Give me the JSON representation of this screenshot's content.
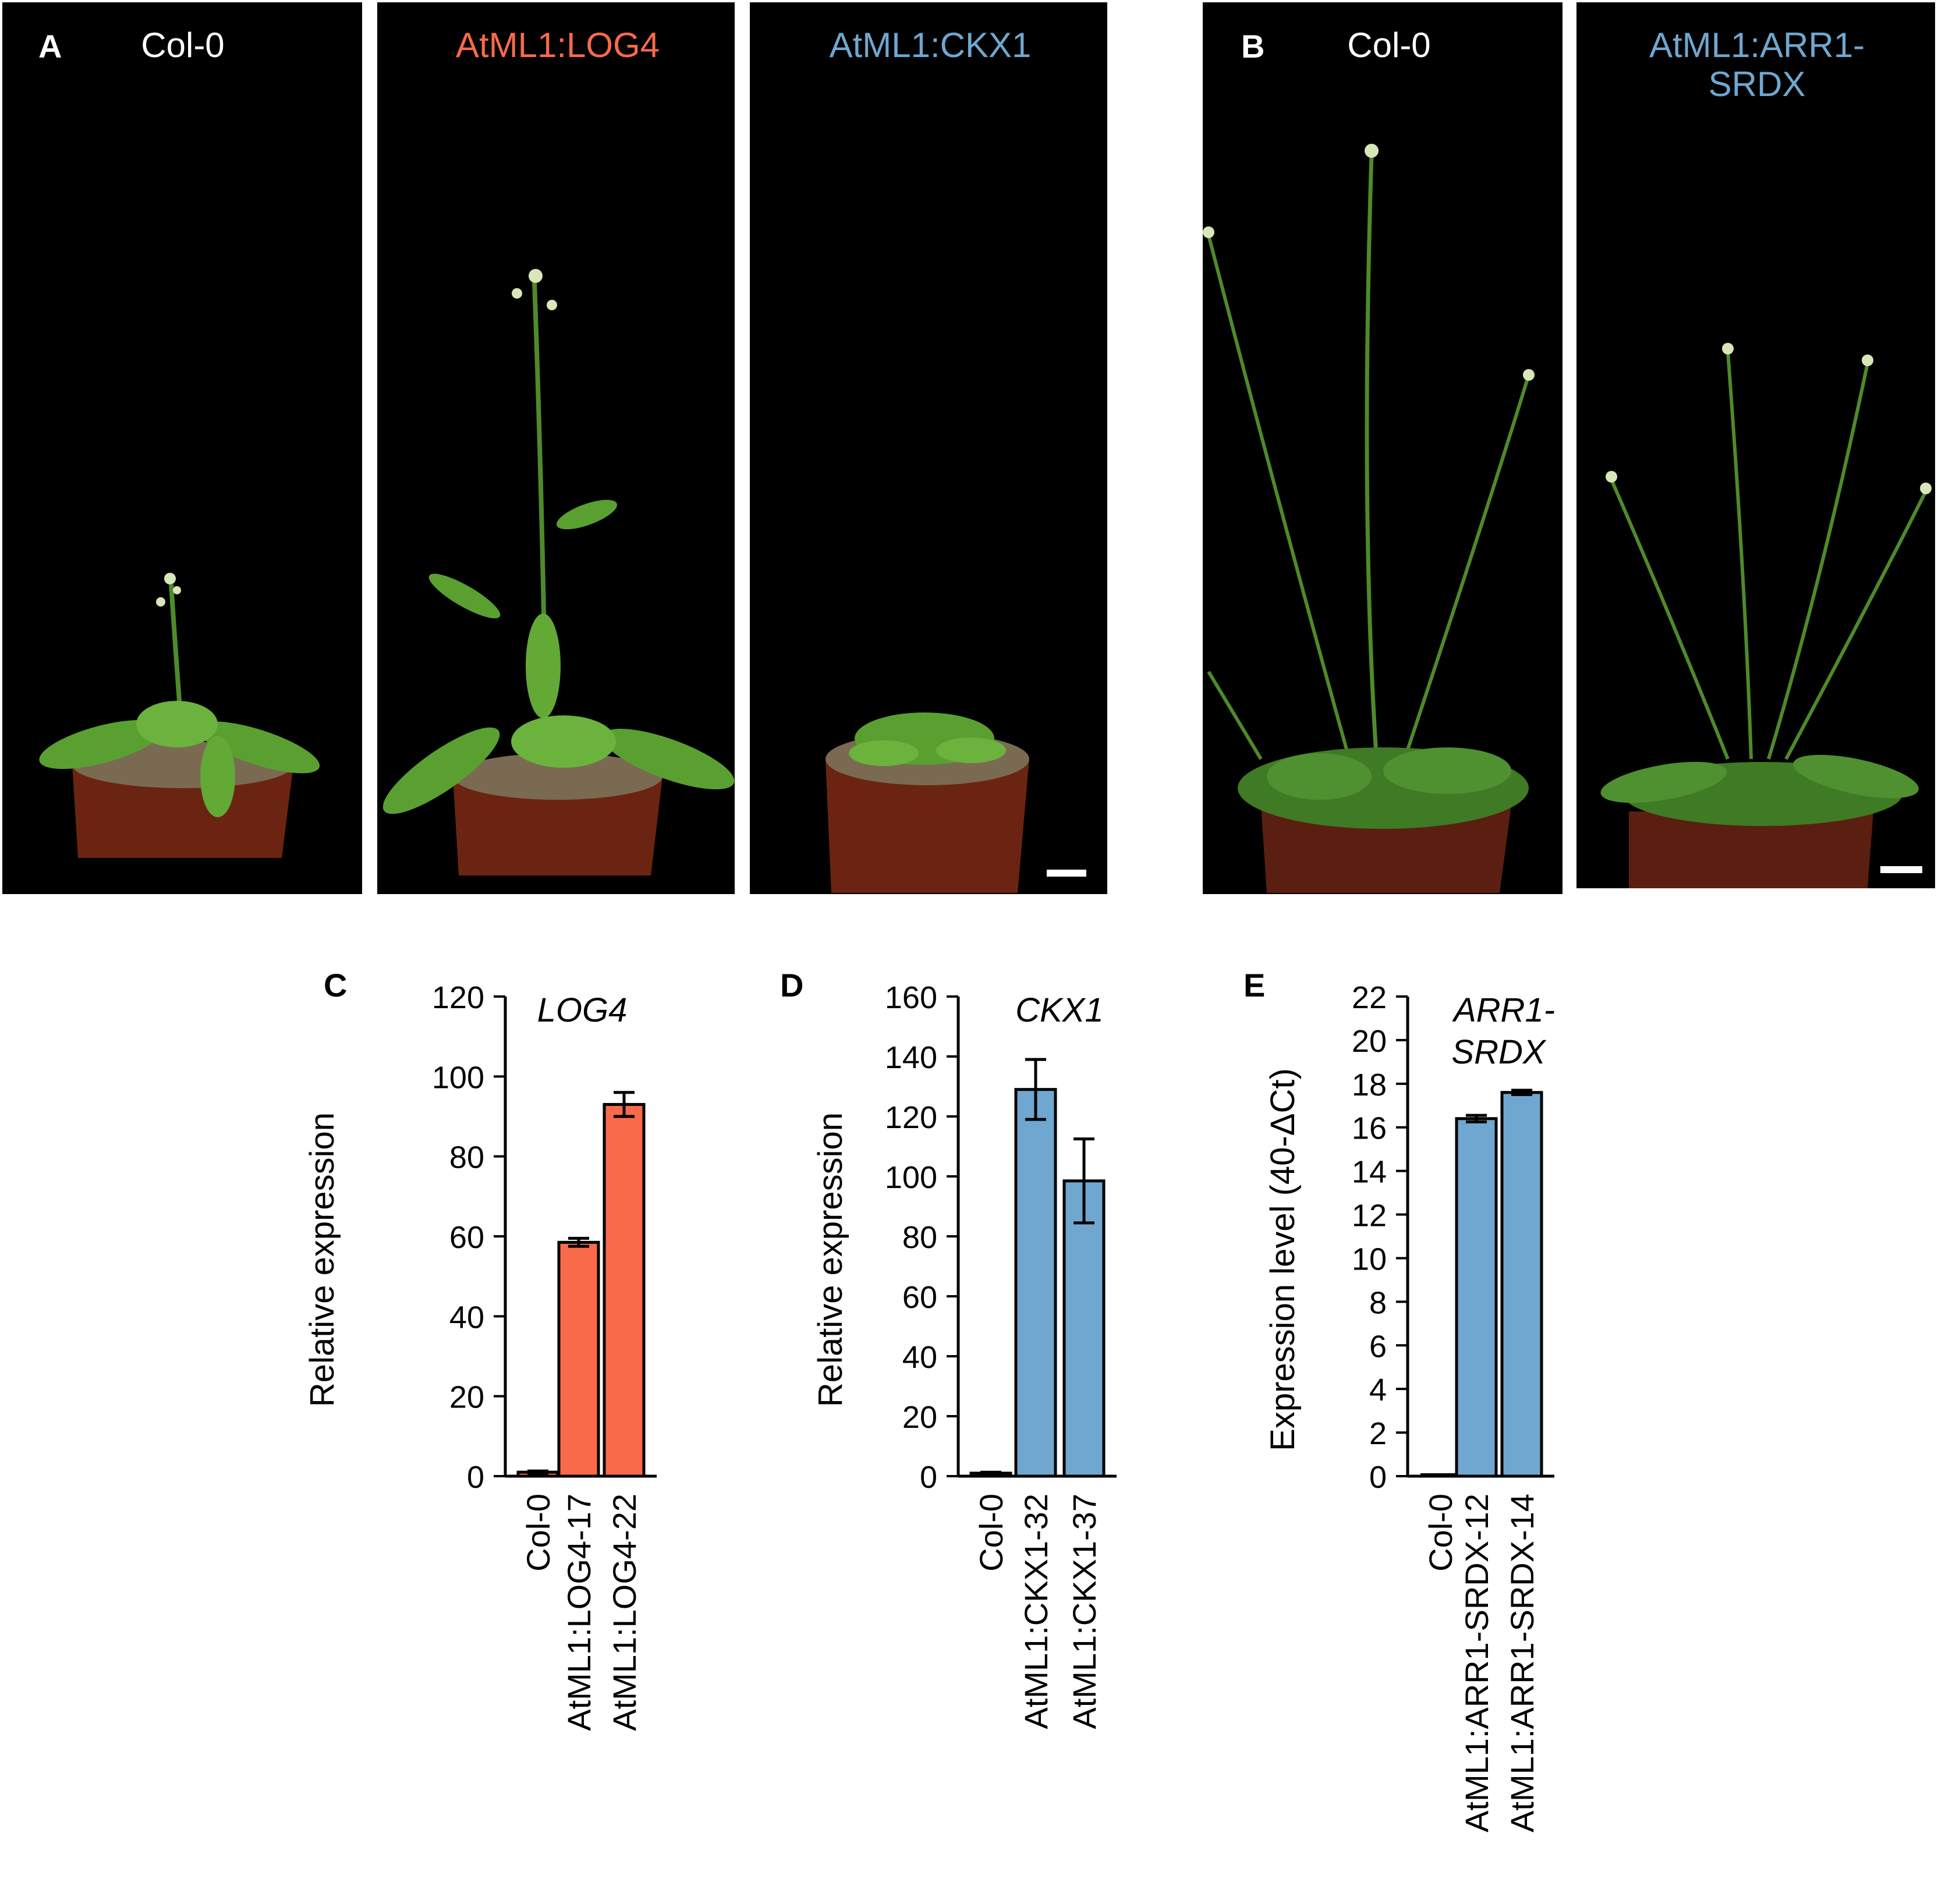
{
  "colors": {
    "log4": "#f86a4a",
    "ckx1": "#6fa7d0",
    "arr1": "#6fa7d0",
    "photo_bg": "#000000",
    "plant": "#5aa030",
    "pot": "#6b2412",
    "soil": "#7a6a52"
  },
  "panel_a": {
    "letter": "A",
    "photos": [
      {
        "title": "Col-0",
        "color": "#ffffff"
      },
      {
        "title": "AtML1:LOG4",
        "color": "#f86a4a"
      },
      {
        "title": "AtML1:CKX1",
        "color": "#6fa7d0"
      }
    ]
  },
  "panel_b": {
    "letter": "B",
    "photos": [
      {
        "title": "Col-0",
        "color": "#ffffff"
      },
      {
        "title": "AtML1:ARR1-SRDX",
        "title_line1": "AtML1:ARR1-",
        "title_line2": "SRDX",
        "color": "#6fa7d0"
      }
    ]
  },
  "chart_data": [
    {
      "panel": "C",
      "type": "bar",
      "title": "LOG4",
      "ylabel": "Relative expression",
      "xlabel": "",
      "categories": [
        "Col-0",
        "AtML1:LOG4-17",
        "AtML1:LOG4-22"
      ],
      "values": [
        1,
        58.5,
        93
      ],
      "errors": [
        0.3,
        1,
        3
      ],
      "ylim": [
        0,
        120
      ],
      "yticks": [
        0,
        20,
        40,
        60,
        80,
        100,
        120
      ],
      "color": "#f86a4a",
      "grid": false
    },
    {
      "panel": "D",
      "type": "bar",
      "title": "CKX1",
      "ylabel": "Relative expression",
      "xlabel": "",
      "categories": [
        "Col-0",
        "AtML1:CKX1-32",
        "AtML1:CKX1-37"
      ],
      "values": [
        1,
        129,
        98.5
      ],
      "errors": [
        0.3,
        10,
        14
      ],
      "ylim": [
        0,
        160
      ],
      "yticks": [
        0,
        20,
        40,
        60,
        80,
        100,
        120,
        140,
        160
      ],
      "color": "#6fa7d0",
      "grid": false
    },
    {
      "panel": "E",
      "type": "bar",
      "title": "ARR1-SRDX",
      "title_line1": "ARR1-",
      "title_line2": "SRDX",
      "ylabel": "Expression level (40-ΔCt)",
      "xlabel": "",
      "categories": [
        "Col-0",
        "AtML1:ARR1-SRDX-12",
        "AtML1:ARR1-SRDX-14"
      ],
      "values": [
        0,
        16.4,
        17.6
      ],
      "errors": [
        0,
        0.15,
        0.1
      ],
      "ylim": [
        0,
        22
      ],
      "yticks": [
        0,
        2,
        4,
        6,
        8,
        10,
        12,
        14,
        16,
        18,
        20,
        22
      ],
      "color": "#6fa7d0",
      "grid": false
    }
  ]
}
